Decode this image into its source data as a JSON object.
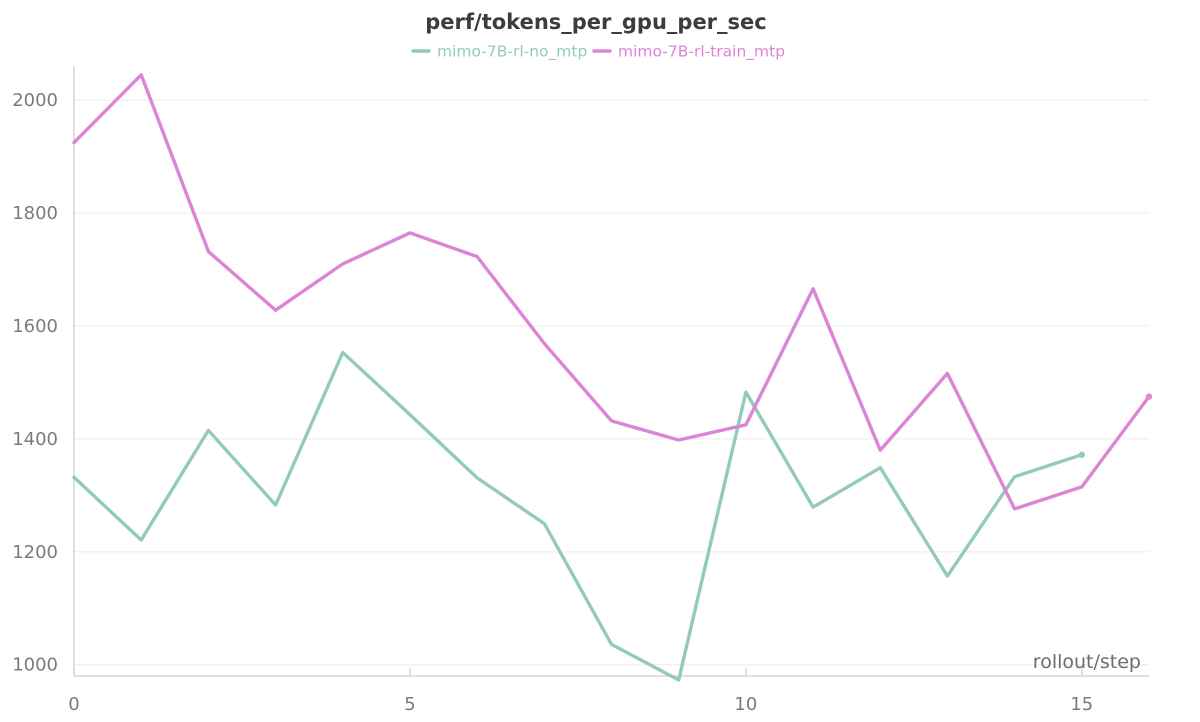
{
  "chart_data": {
    "type": "line",
    "title": "perf/tokens_per_gpu_per_sec",
    "xlabel": "rollout/step",
    "ylabel": "",
    "xlim": [
      0,
      16
    ],
    "ylim": [
      980,
      2050
    ],
    "x_ticks": [
      0,
      5,
      10,
      15
    ],
    "y_ticks": [
      1000,
      1200,
      1400,
      1600,
      1800,
      2000
    ],
    "grid": true,
    "legend_position": "top-center",
    "series": [
      {
        "name": "mimo-7B-rl-no_mtp",
        "color": "#93cbb9",
        "x": [
          0,
          1,
          2,
          3,
          4,
          5,
          6,
          7,
          8,
          9,
          10,
          11,
          12,
          13,
          14,
          15
        ],
        "y": [
          1332,
          1221,
          1415,
          1283,
          1553,
          1443,
          1331,
          1250,
          1036,
          973,
          1483,
          1279,
          1349,
          1157,
          1333,
          1372
        ]
      },
      {
        "name": "mimo-7B-rl-train_mtp",
        "color": "#dc85d7",
        "x": [
          0,
          1,
          2,
          3,
          4,
          5,
          6,
          7,
          8,
          9,
          10,
          11,
          12,
          13,
          14,
          15,
          16
        ],
        "y": [
          1925,
          2045,
          1732,
          1628,
          1710,
          1765,
          1723,
          1569,
          1432,
          1398,
          1425,
          1666,
          1380,
          1516,
          1276,
          1315,
          1475
        ]
      }
    ]
  }
}
